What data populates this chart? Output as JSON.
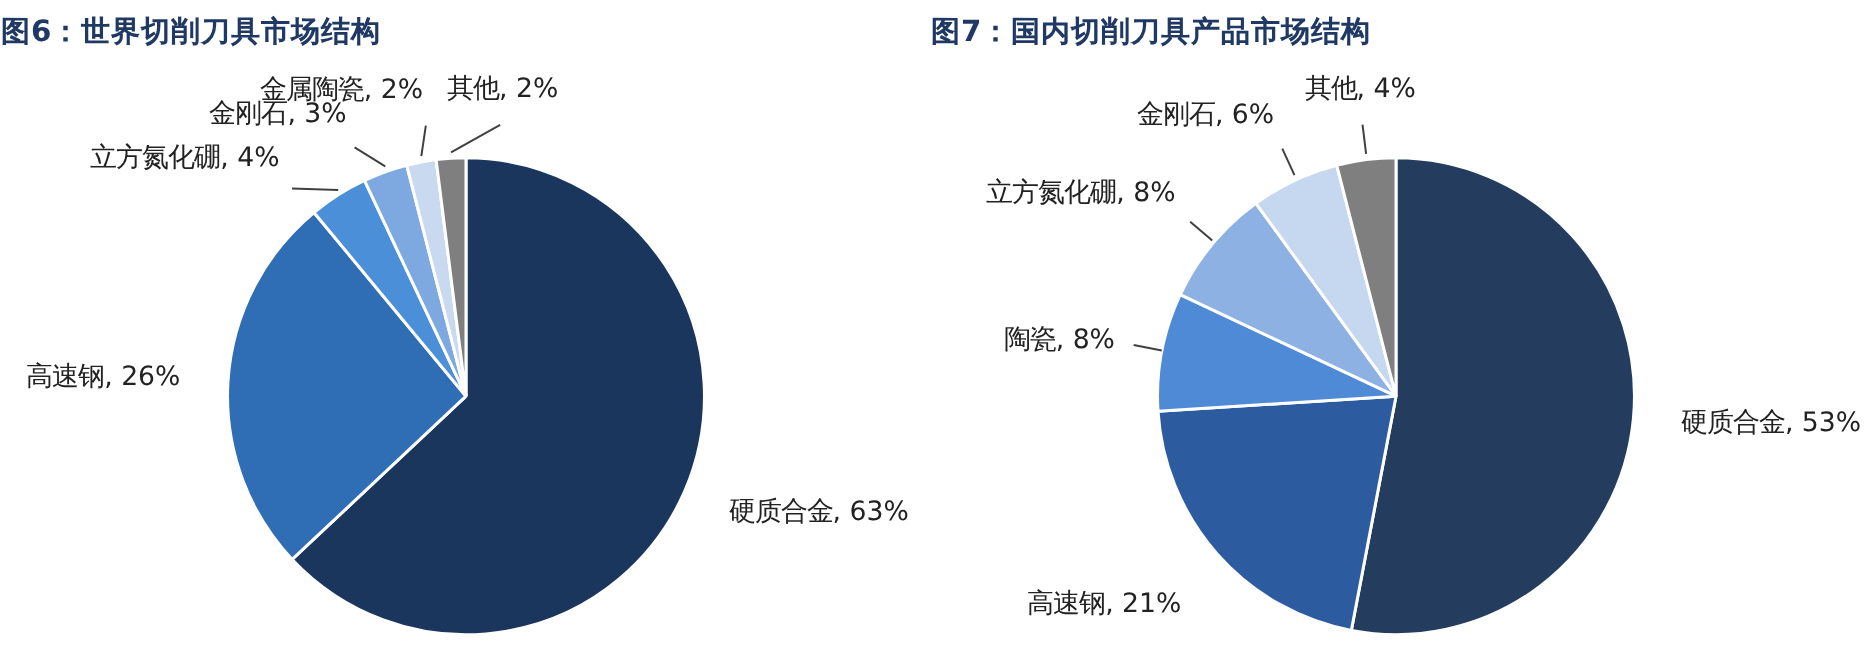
{
  "chart_data": [
    {
      "type": "pie",
      "title": "图6：世界切削刀具市场结构",
      "categories": [
        "硬质合金",
        "高速钢",
        "立方氮化硼",
        "金刚石",
        "金属陶瓷",
        "其他"
      ],
      "values": [
        63,
        26,
        4,
        3,
        2,
        2
      ],
      "value_labels": [
        "63%",
        "26%",
        "4%",
        "3%",
        "2%",
        "2%"
      ],
      "colors": [
        "#1b365d",
        "#2f6db5",
        "#4a8fd8",
        "#7ea8e0",
        "#c9d9f0",
        "#7f7f7f"
      ]
    },
    {
      "type": "pie",
      "title": "图7：国内切削刀具产品市场结构",
      "categories": [
        "硬质合金",
        "高速钢",
        "陶瓷",
        "立方氮化硼",
        "金刚石",
        "其他"
      ],
      "values": [
        53,
        21,
        8,
        8,
        6,
        4
      ],
      "value_labels": [
        "53%",
        "21%",
        "8%",
        "8%",
        "6%",
        "4%"
      ],
      "colors": [
        "#243d5e",
        "#2c5b9f",
        "#4f8ad6",
        "#8db1e3",
        "#c6d8f0",
        "#7f7f7f"
      ]
    }
  ]
}
